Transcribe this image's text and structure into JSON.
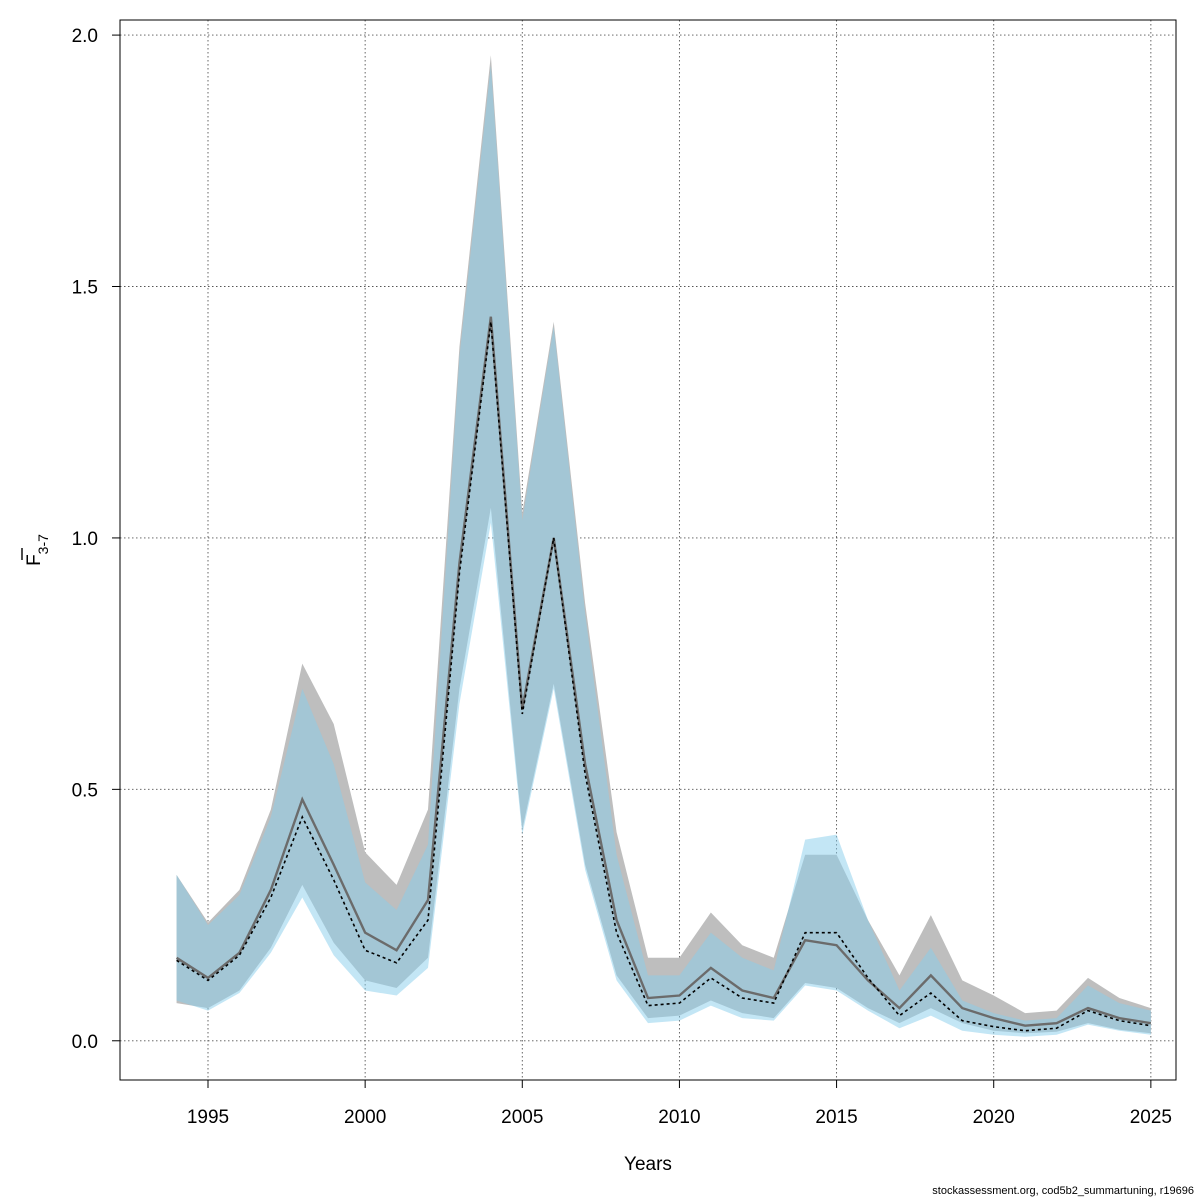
{
  "chart_data": {
    "type": "area",
    "xlabel": "Years",
    "ylabel": {
      "main": "F",
      "subscript": "3-7"
    },
    "xlim": [
      1992.2,
      2025.8
    ],
    "ylim": [
      -0.078,
      2.03
    ],
    "x_ticks": [
      "1995",
      "2000",
      "2005",
      "2010",
      "2015",
      "2020",
      "2025"
    ],
    "y_ticks": [
      "0.0",
      "0.5",
      "1.0",
      "1.5",
      "2.0"
    ],
    "grid": true,
    "x": [
      1994,
      1995,
      1996,
      1997,
      1998,
      1999,
      2000,
      2001,
      2002,
      2003,
      2004,
      2005,
      2006,
      2007,
      2008,
      2009,
      2010,
      2011,
      2012,
      2013,
      2014,
      2015,
      2016,
      2017,
      2018,
      2019,
      2020,
      2021,
      2022,
      2023,
      2024,
      2025
    ],
    "series": [
      {
        "role": "grey",
        "fill_color": "#bebebe",
        "line_color": "#6b6b6b",
        "line_style": "solid",
        "estimate": [
          0.165,
          0.125,
          0.175,
          0.3,
          0.48,
          0.35,
          0.215,
          0.18,
          0.28,
          0.95,
          1.44,
          0.66,
          1.0,
          0.55,
          0.24,
          0.085,
          0.09,
          0.145,
          0.1,
          0.085,
          0.2,
          0.19,
          0.12,
          0.065,
          0.13,
          0.065,
          0.045,
          0.03,
          0.035,
          0.065,
          0.045,
          0.035
        ],
        "lower": [
          0.075,
          0.065,
          0.1,
          0.185,
          0.31,
          0.195,
          0.12,
          0.105,
          0.165,
          0.7,
          1.06,
          0.42,
          0.71,
          0.35,
          0.13,
          0.045,
          0.05,
          0.08,
          0.055,
          0.045,
          0.115,
          0.105,
          0.065,
          0.035,
          0.065,
          0.035,
          0.02,
          0.015,
          0.018,
          0.035,
          0.022,
          0.015
        ],
        "upper": [
          0.33,
          0.235,
          0.3,
          0.46,
          0.75,
          0.63,
          0.375,
          0.31,
          0.46,
          1.38,
          1.96,
          1.05,
          1.43,
          0.87,
          0.415,
          0.165,
          0.165,
          0.255,
          0.19,
          0.165,
          0.37,
          0.37,
          0.24,
          0.13,
          0.25,
          0.12,
          0.09,
          0.055,
          0.06,
          0.125,
          0.085,
          0.065
        ]
      },
      {
        "role": "blue",
        "fill_color": "#87ceeb",
        "line_color": "#000000",
        "line_style": "dashed",
        "estimate": [
          0.16,
          0.12,
          0.17,
          0.285,
          0.445,
          0.32,
          0.18,
          0.155,
          0.24,
          0.93,
          1.43,
          0.65,
          1.0,
          0.53,
          0.215,
          0.07,
          0.075,
          0.125,
          0.085,
          0.075,
          0.215,
          0.215,
          0.125,
          0.05,
          0.095,
          0.04,
          0.028,
          0.02,
          0.025,
          0.06,
          0.04,
          0.03
        ],
        "lower": [
          0.08,
          0.06,
          0.095,
          0.175,
          0.285,
          0.17,
          0.1,
          0.09,
          0.145,
          0.67,
          1.03,
          0.41,
          0.7,
          0.34,
          0.12,
          0.035,
          0.04,
          0.07,
          0.045,
          0.04,
          0.11,
          0.1,
          0.06,
          0.025,
          0.05,
          0.02,
          0.012,
          0.008,
          0.012,
          0.032,
          0.02,
          0.012
        ],
        "upper": [
          0.33,
          0.23,
          0.29,
          0.445,
          0.7,
          0.55,
          0.315,
          0.26,
          0.39,
          1.36,
          1.94,
          1.035,
          1.42,
          0.85,
          0.37,
          0.13,
          0.13,
          0.215,
          0.165,
          0.14,
          0.4,
          0.41,
          0.24,
          0.1,
          0.185,
          0.08,
          0.055,
          0.04,
          0.045,
          0.11,
          0.075,
          0.06
        ]
      }
    ]
  },
  "footer": "stockassessment.org, cod5b2_summartuning, r19696"
}
